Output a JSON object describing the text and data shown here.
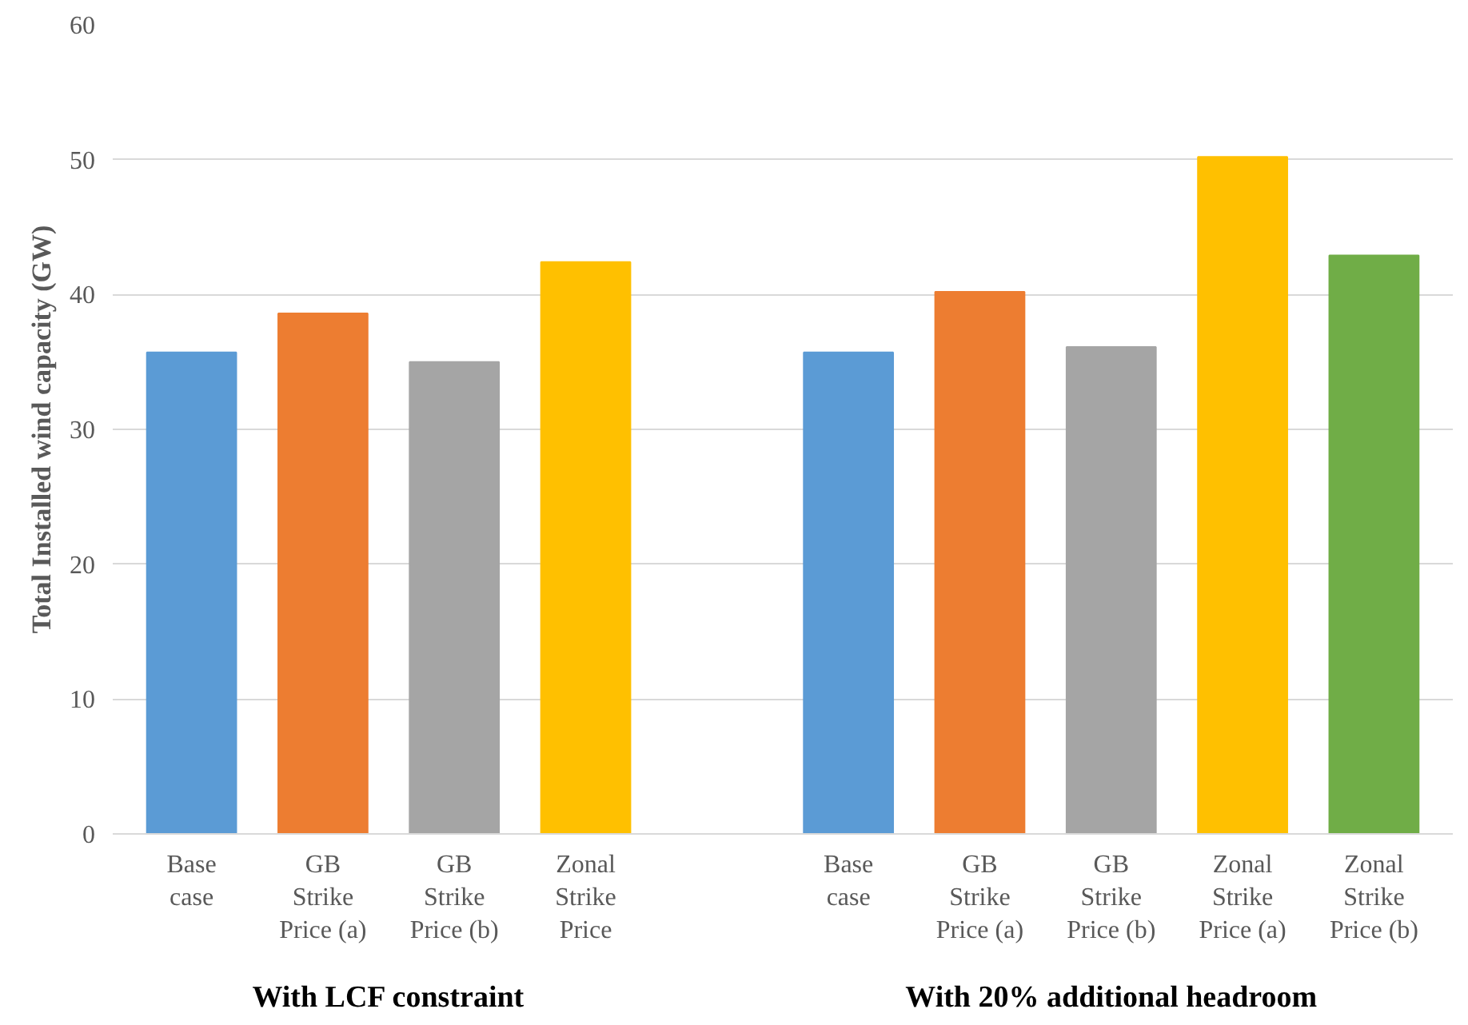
{
  "chart_data": {
    "type": "bar",
    "ylabel": "Total Installed wind capacity (GW)",
    "categories": [
      "Base\ncase",
      "GB\nStrike\nPrice (a)",
      "GB\nStrike\nPrice (b)",
      "Zonal\nStrike\nPrice",
      null,
      "Base\ncase",
      "GB\nStrike\nPrice (a)",
      "GB\nStrike\nPrice (b)",
      "Zonal\nStrike\nPrice (a)",
      "Zonal\nStrike\nPrice (b)"
    ],
    "values": [
      35.7,
      38.6,
      35.0,
      42.4,
      null,
      35.7,
      40.2,
      36.1,
      50.2,
      42.9
    ],
    "colors": [
      "#5b9bd5",
      "#ed7d31",
      "#a5a5a5",
      "#ffc000",
      "#ffffff",
      "#5b9bd5",
      "#ed7d31",
      "#a5a5a5",
      "#ffc000",
      "#70ad47"
    ],
    "ylim": [
      0,
      60
    ],
    "yticks": [
      0,
      10,
      20,
      30,
      40,
      50,
      60
    ],
    "grid": "y",
    "annotations": [
      "With LCF constraint",
      "With 20% additional headroom"
    ]
  }
}
